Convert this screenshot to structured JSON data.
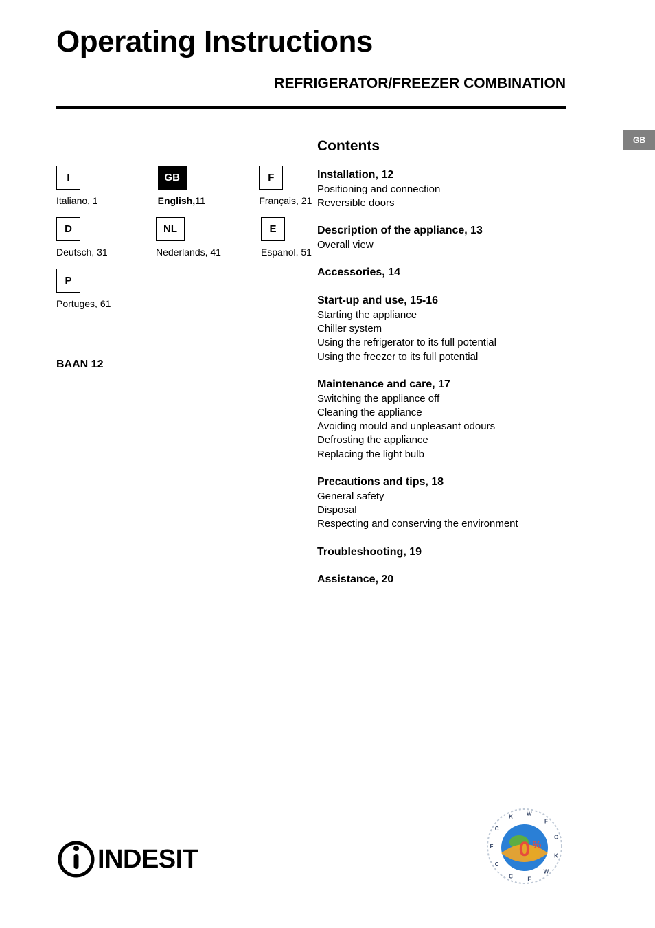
{
  "title": "Operating Instructions",
  "subtitle": "REFRIGERATOR/FREEZER COMBINATION",
  "side_tab": "GB",
  "languages": [
    [
      {
        "code": "I",
        "caption": "Italiano, 1",
        "active": false,
        "bold": false
      },
      {
        "code": "GB",
        "caption": "English,11",
        "active": true,
        "bold": true
      },
      {
        "code": "F",
        "caption": "Français, 21",
        "active": false,
        "bold": false
      }
    ],
    [
      {
        "code": "D",
        "caption": "Deutsch, 31",
        "active": false,
        "bold": false
      },
      {
        "code": "NL",
        "caption": "Nederlands, 41",
        "active": false,
        "bold": false
      },
      {
        "code": "E",
        "caption": "Espanol, 51",
        "active": false,
        "bold": false
      }
    ],
    [
      {
        "code": "P",
        "caption": "Portuges, 61",
        "active": false,
        "bold": false
      }
    ]
  ],
  "model": "BAAN 12",
  "contents_title": "Contents",
  "sections": [
    {
      "heading": "Installation, 12",
      "lines": [
        "Positioning and connection",
        "Reversible doors"
      ]
    },
    {
      "heading": "Description of the appliance, 13",
      "lines": [
        "Overall view"
      ]
    },
    {
      "heading": "Accessories, 14",
      "lines": []
    },
    {
      "heading": "Start-up and use, 15-16",
      "lines": [
        "Starting the appliance",
        "Chiller system",
        "Using the refrigerator to its full potential",
        "Using the freezer to its full potential"
      ]
    },
    {
      "heading": "Maintenance and care, 17",
      "lines": [
        "Switching the appliance off",
        "Cleaning the appliance",
        "Avoiding mould and unpleasant odours",
        "Defrosting the appliance",
        "Replacing the light bulb"
      ]
    },
    {
      "heading": "Precautions and tips, 18",
      "lines": [
        "General safety",
        "Disposal",
        "Respecting and conserving the environment"
      ]
    },
    {
      "heading": "Troubleshooting, 19",
      "lines": []
    },
    {
      "heading": "Assistance, 20",
      "lines": []
    }
  ],
  "brand": "Indesit",
  "eco": {
    "letters": [
      "F",
      "C",
      "K",
      "W",
      "F",
      "C",
      "K",
      "W",
      "F",
      "C",
      "C"
    ],
    "colors": {
      "globe_blue": "#2a7fd6",
      "globe_green": "#5fb03c",
      "band_orange": "#f5a623",
      "band_red": "#e74c3c",
      "ring": "#bfc9d6"
    }
  }
}
